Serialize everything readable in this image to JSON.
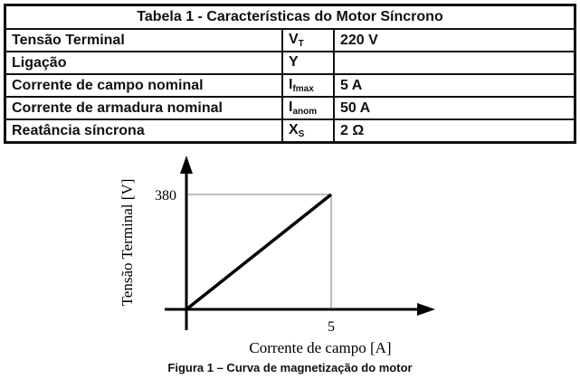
{
  "table": {
    "title": "Tabela 1 - Características  do Motor  Síncrono",
    "rows": [
      {
        "label": "Tensão Terminal",
        "symbol": "V",
        "sub": "T",
        "value": "220 V"
      },
      {
        "label": "Ligação",
        "symbol": "Y",
        "sub": "",
        "value": ""
      },
      {
        "label": "Corrente de campo nominal",
        "symbol": "I",
        "sub": "fmax",
        "value": "5 A"
      },
      {
        "label": "Corrente de armadura nominal",
        "symbol": "I",
        "sub": "anom",
        "value": "50 A"
      },
      {
        "label": "Reatância síncrona",
        "symbol": "X",
        "sub": "S",
        "value": "2 Ω"
      }
    ]
  },
  "figure": {
    "caption": "Figura 1 – Curva de magnetização do motor"
  },
  "chart_data": {
    "type": "line",
    "xlabel": "Corrente de campo [A]",
    "ylabel": "Tensão Terminal [V]",
    "x_ticks": [
      "5"
    ],
    "y_ticks": [
      "380"
    ],
    "series": [
      {
        "x": [
          0,
          5
        ],
        "y": [
          0,
          380
        ]
      }
    ],
    "grid": false
  }
}
